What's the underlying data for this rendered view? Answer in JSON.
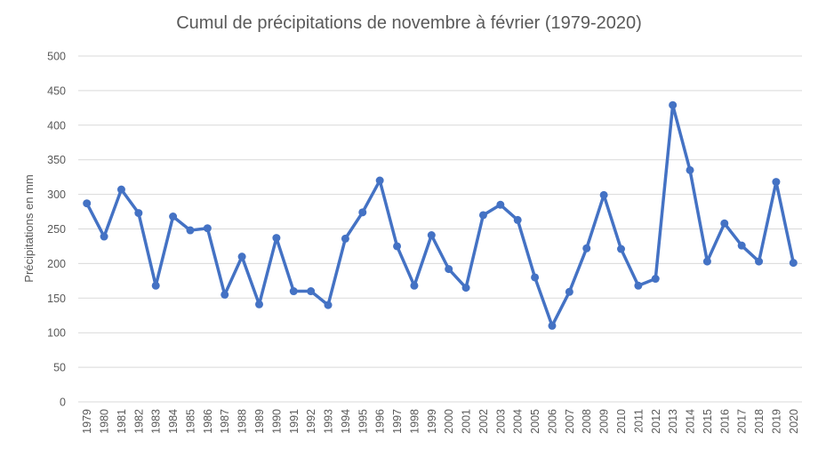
{
  "chart_data": {
    "type": "line",
    "title": "Cumul de précipitations de novembre à février (1979-2020)",
    "xlabel": "",
    "ylabel": "Précipitations en mm",
    "ylim": [
      0,
      500
    ],
    "yticks": [
      0,
      50,
      100,
      150,
      200,
      250,
      300,
      350,
      400,
      450,
      500
    ],
    "grid": true,
    "legend": "none",
    "colors": {
      "series": "#4472c4",
      "grid": "#d9d9d9",
      "text": "#595959"
    },
    "categories": [
      "1979",
      "1980",
      "1981",
      "1982",
      "1983",
      "1984",
      "1985",
      "1986",
      "1987",
      "1988",
      "1989",
      "1990",
      "1991",
      "1992",
      "1993",
      "1994",
      "1995",
      "1996",
      "1997",
      "1998",
      "1999",
      "2000",
      "2001",
      "2002",
      "2003",
      "2004",
      "2005",
      "2006",
      "2007",
      "2008",
      "2009",
      "2010",
      "2011",
      "2012",
      "2013",
      "2014",
      "2015",
      "2016",
      "2017",
      "2018",
      "2019",
      "2020"
    ],
    "series": [
      {
        "values": [
          287,
          239,
          307,
          273,
          168,
          268,
          248,
          251,
          155,
          210,
          141,
          237,
          160,
          160,
          140,
          236,
          274,
          320,
          225,
          168,
          241,
          192,
          165,
          270,
          285,
          263,
          180,
          110,
          159,
          222,
          299,
          221,
          168,
          178,
          429,
          335,
          203,
          258,
          226,
          203,
          318,
          201
        ]
      }
    ]
  }
}
